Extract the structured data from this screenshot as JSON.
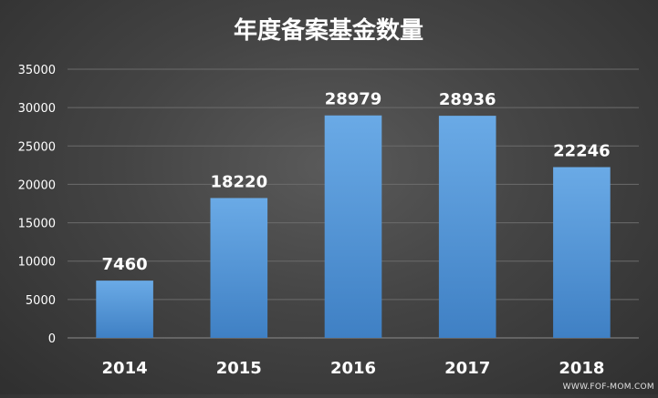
{
  "chart_data": {
    "type": "bar",
    "title": "年度备案基金数量",
    "categories": [
      "2014",
      "2015",
      "2016",
      "2017",
      "2018"
    ],
    "values": [
      7460,
      18220,
      28979,
      28936,
      22246
    ],
    "data_labels": [
      "7460",
      "18220",
      "28979",
      "28936",
      "22246"
    ],
    "ylim": [
      0,
      35000
    ],
    "y_ticks": [
      0,
      5000,
      10000,
      15000,
      20000,
      25000,
      30000,
      35000
    ],
    "grid": true,
    "legend": "none",
    "bar_color": "#5b9bd5"
  },
  "watermark": "WWW.FOF-MOM.COM"
}
